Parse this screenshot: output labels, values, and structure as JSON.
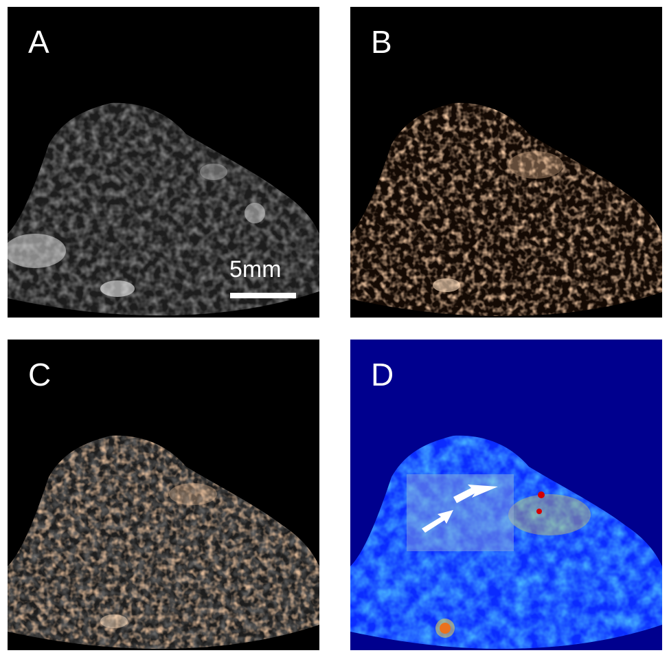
{
  "panels": [
    {
      "id": "A",
      "label": "A",
      "modality": "grayscale"
    },
    {
      "id": "B",
      "label": "B",
      "modality": "copper"
    },
    {
      "id": "C",
      "label": "C",
      "modality": "overlay"
    },
    {
      "id": "D",
      "label": "D",
      "modality": "jet"
    }
  ],
  "scalebar": {
    "label": "5mm"
  },
  "colors": {
    "background": "#000000",
    "copper": "#d79a6a",
    "jet_background": "#00008e",
    "jet_mid": "#39c8ff",
    "jet_hot": "#ffe23a"
  }
}
